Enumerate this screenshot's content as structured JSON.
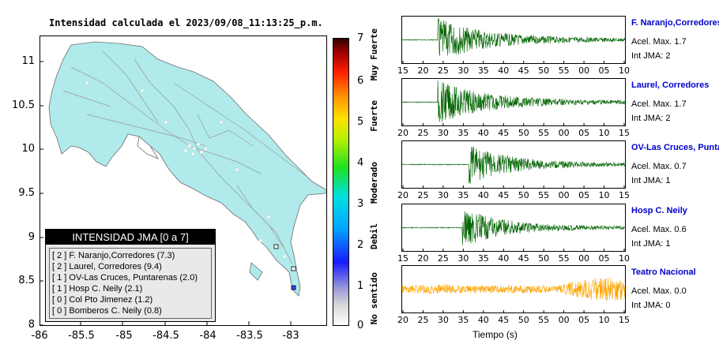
{
  "map": {
    "title": "Intensidad calculada el 2023/09/08_11:13:25_p.m.",
    "y_ticks": [
      "11",
      "10.5",
      "10",
      "9.5",
      "9",
      "8.5",
      "8"
    ],
    "x_ticks": [
      "-86",
      "-85.5",
      "-85",
      "-84.5",
      "-84",
      "-83.5",
      "-83"
    ],
    "colorbar_ticks": [
      "7",
      "6",
      "5",
      "4",
      "3",
      "2",
      "1",
      "0"
    ],
    "colorbar_labels": [
      "Muy Fuerte",
      "Fuerte",
      "Moderado",
      "Debil",
      "No sentido"
    ]
  },
  "legend": {
    "title": "INTENSIDAD JMA [0 a 7]",
    "rows": [
      "[ 2 ]  F. Naranjo,Corredores (7.3)",
      "[ 2 ]  Laurel, Corredores (9.4)",
      "[ 1 ]  OV-Las Cruces, Puntarenas (2.0)",
      "[ 1 ]  Hosp C. Neily (2.1)",
      "[ 0 ]  Col Pto Jimenez (1.2)",
      "[ 0 ]  Bomberos C. Neily (0.8)"
    ]
  },
  "stations": [
    {
      "name": "F. Naranjo,Corredores",
      "acel": "Acel. Max. 1.7",
      "jma": "Int JMA: 2",
      "color": "#006400",
      "ticks": [
        "15",
        "20",
        "25",
        "30",
        "35",
        "40",
        "45",
        "50",
        "55",
        "00",
        "05",
        "10"
      ]
    },
    {
      "name": "Laurel, Corredores",
      "acel": "Acel. Max. 1.7",
      "jma": "Int JMA: 2",
      "color": "#006400",
      "ticks": [
        "20",
        "25",
        "30",
        "35",
        "40",
        "45",
        "50",
        "55",
        "00",
        "05",
        "10",
        "15"
      ]
    },
    {
      "name": "OV-Las Cruces, Puntar",
      "acel": "Acel. Max. 0.7",
      "jma": "Int JMA: 1",
      "color": "#006400",
      "ticks": [
        "20",
        "25",
        "30",
        "35",
        "40",
        "45",
        "50",
        "55",
        "00",
        "05",
        "10",
        "15"
      ]
    },
    {
      "name": "Hosp C. Neily",
      "acel": "Acel. Max. 0.6",
      "jma": "Int JMA: 1",
      "color": "#006400",
      "ticks": [
        "15",
        "20",
        "25",
        "30",
        "35",
        "40",
        "45",
        "50",
        "55",
        "00",
        "05",
        "10"
      ]
    },
    {
      "name": "Teatro Nacional",
      "acel": "Acel. Max. 0.0",
      "jma": "Int JMA: 0",
      "color": "#ffa500",
      "ticks": [
        "20",
        "25",
        "30",
        "35",
        "40",
        "45",
        "50",
        "55",
        "00",
        "05",
        "10",
        "15"
      ]
    }
  ],
  "x_axis_label": "Tiempo (s)"
}
